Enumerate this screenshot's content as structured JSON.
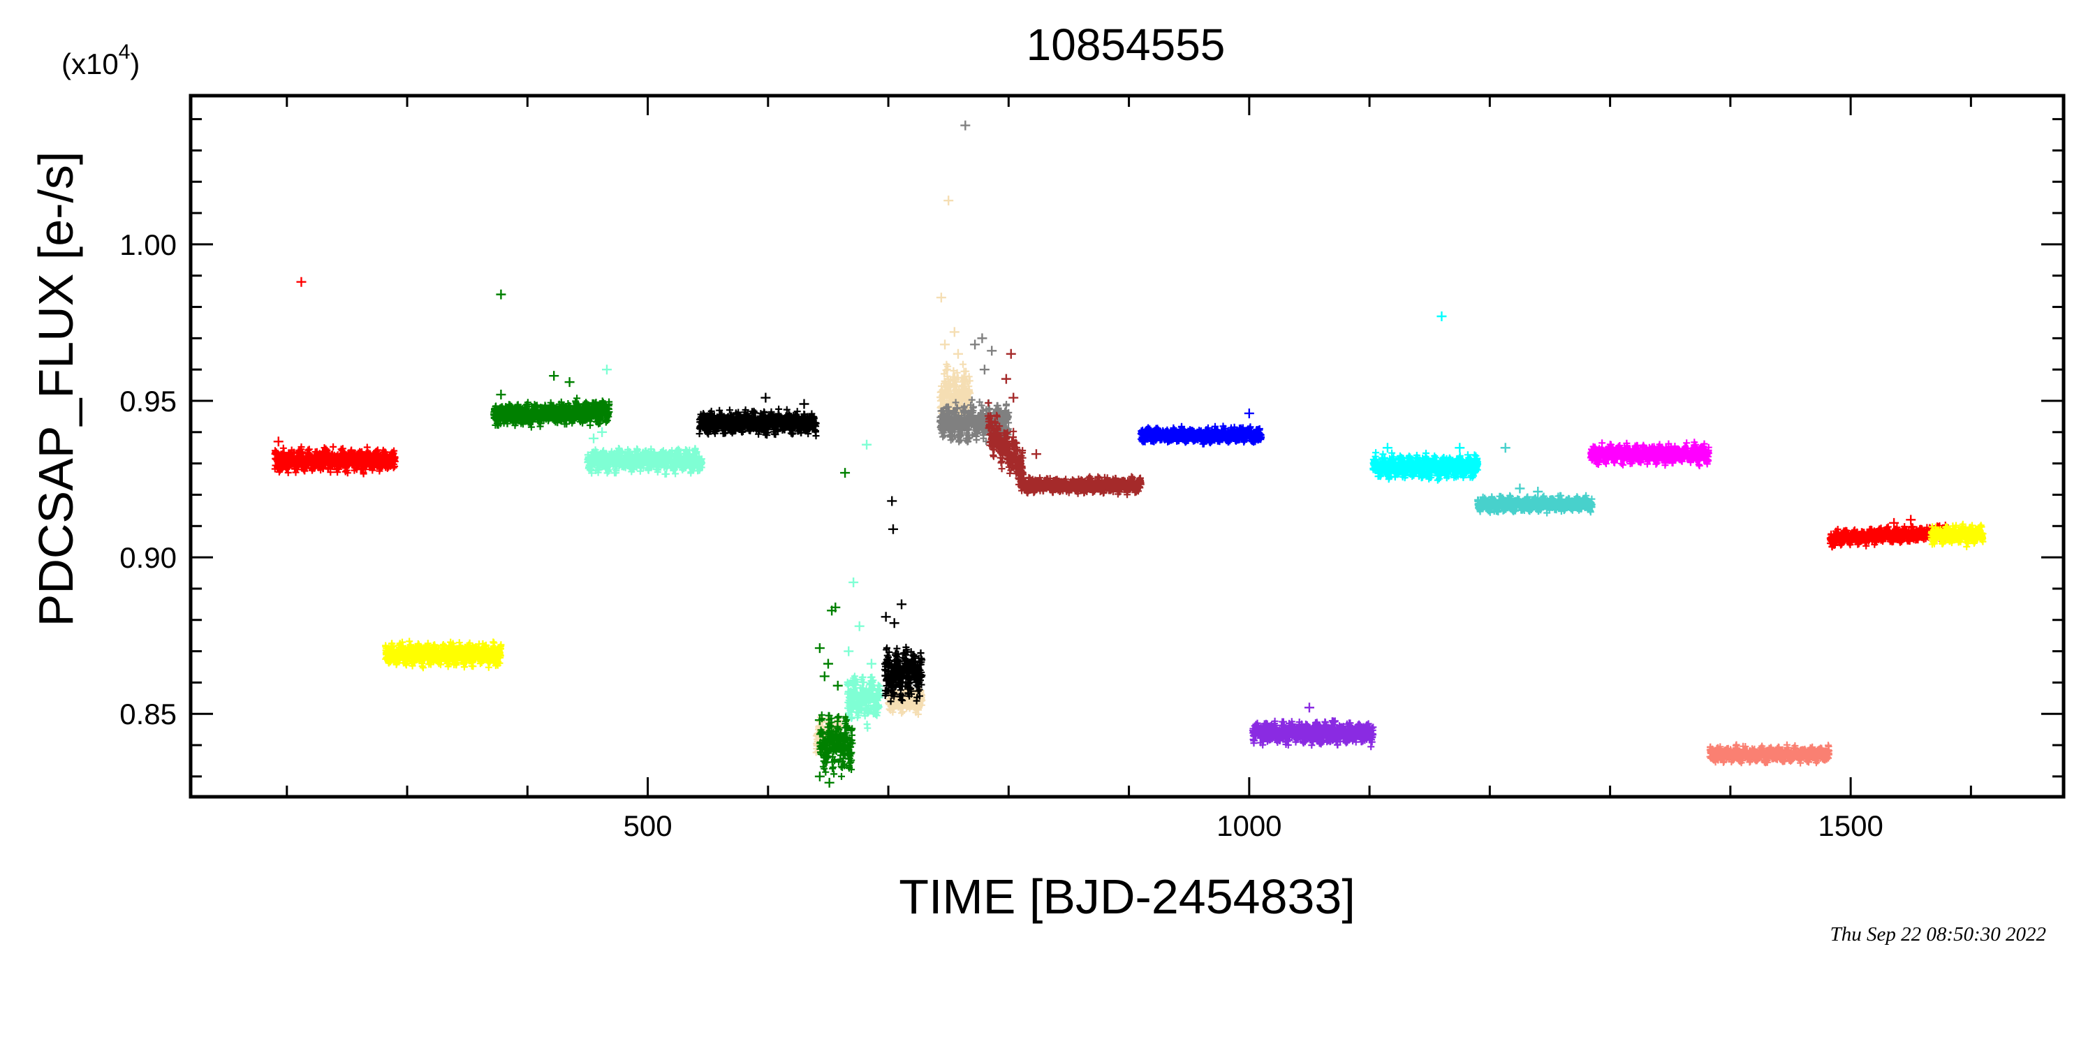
{
  "chart_data": {
    "type": "scatter",
    "title": "10854555",
    "xlabel": "TIME [BJD-2454833]",
    "ylabel": "PDCSAP_FLUX [e-/s]",
    "y_multiplier_label": "(x10",
    "y_multiplier_exp": "4",
    "y_multiplier_close": ")",
    "xlim": [
      120,
      1677
    ],
    "ylim": [
      0.8235,
      1.0475
    ],
    "x_ticks": [
      {
        "value": 500,
        "label": "500"
      },
      {
        "value": 1000,
        "label": "1000"
      },
      {
        "value": 1500,
        "label": "1500"
      }
    ],
    "y_ticks": [
      {
        "value": 0.85,
        "label": "0.85"
      },
      {
        "value": 0.9,
        "label": "0.90"
      },
      {
        "value": 0.95,
        "label": "0.95"
      },
      {
        "value": 1.0,
        "label": "1.00"
      }
    ],
    "grid": false,
    "marker": "+",
    "series": [
      {
        "color": "#ff0000",
        "x_start": 190,
        "x_end": 290,
        "level": 0.931,
        "noise": 0.003,
        "trend": 0.0,
        "outliers": [
          [
            212,
            0.988
          ],
          [
            193,
            0.937
          ]
        ]
      },
      {
        "color": "#ffff00",
        "x_start": 282,
        "x_end": 378,
        "level": 0.869,
        "noise": 0.003,
        "trend": 0.0,
        "outliers": []
      },
      {
        "color": "#008000",
        "x_start": 372,
        "x_end": 468,
        "level": 0.946,
        "noise": 0.003,
        "trend": 0.001,
        "outliers": [
          [
            378,
            0.984
          ],
          [
            422,
            0.958
          ],
          [
            435,
            0.956
          ],
          [
            378,
            0.952
          ]
        ]
      },
      {
        "color": "#7fffd4",
        "x_start": 450,
        "x_end": 545,
        "level": 0.931,
        "noise": 0.003,
        "trend": 0.0,
        "outliers": [
          [
            466,
            0.96
          ],
          [
            455,
            0.938
          ],
          [
            462,
            0.94
          ]
        ]
      },
      {
        "color": "#000000",
        "x_start": 543,
        "x_end": 640,
        "level": 0.943,
        "noise": 0.003,
        "trend": 0.0,
        "outliers": [
          [
            598,
            0.951
          ],
          [
            630,
            0.949
          ]
        ]
      },
      {
        "color": "#f5deb3",
        "x_start": 640,
        "x_end": 660,
        "level": 0.843,
        "noise": 0.005,
        "trend": 0.0,
        "outliers": []
      },
      {
        "color": "#008000",
        "x_start": 643,
        "x_end": 670,
        "level": 0.84,
        "noise": 0.007,
        "trend": 0.0,
        "outliers": [
          [
            664,
            0.927
          ],
          [
            653,
            0.883
          ],
          [
            656,
            0.884
          ],
          [
            643,
            0.871
          ],
          [
            650,
            0.866
          ],
          [
            658,
            0.859
          ],
          [
            647,
            0.862
          ],
          [
            643,
            0.848
          ],
          [
            643,
            0.83
          ],
          [
            651,
            0.828
          ]
        ]
      },
      {
        "color": "#7fffd4",
        "x_start": 666,
        "x_end": 693,
        "level": 0.855,
        "noise": 0.006,
        "trend": 0.0,
        "outliers": [
          [
            682,
            0.936
          ],
          [
            671,
            0.892
          ],
          [
            676,
            0.878
          ],
          [
            667,
            0.87
          ],
          [
            686,
            0.866
          ]
        ]
      },
      {
        "color": "#f5deb3",
        "x_start": 700,
        "x_end": 728,
        "level": 0.854,
        "noise": 0.003,
        "trend": 0.0,
        "outliers": []
      },
      {
        "color": "#000000",
        "x_start": 697,
        "x_end": 728,
        "level": 0.863,
        "noise": 0.007,
        "trend": 0.0,
        "outliers": [
          [
            703,
            0.918
          ],
          [
            704,
            0.909
          ],
          [
            711,
            0.885
          ],
          [
            698,
            0.881
          ],
          [
            705,
            0.879
          ]
        ]
      },
      {
        "color": "#f5deb3",
        "x_start": 743,
        "x_end": 768,
        "level": 0.952,
        "noise": 0.007,
        "trend": 0.0,
        "outliers": [
          [
            750,
            1.014
          ],
          [
            744,
            0.983
          ],
          [
            755,
            0.972
          ],
          [
            758,
            0.965
          ],
          [
            747,
            0.968
          ]
        ]
      },
      {
        "color": "#808080",
        "x_start": 743,
        "x_end": 800,
        "level": 0.943,
        "noise": 0.005,
        "trend": 0.0,
        "outliers": [
          [
            764,
            1.038
          ],
          [
            778,
            0.97
          ],
          [
            772,
            0.968
          ],
          [
            786,
            0.966
          ],
          [
            780,
            0.96
          ]
        ]
      },
      {
        "color": "#a52a2a",
        "x_start": 783,
        "x_end": 812,
        "level": 0.935,
        "noise": 0.006,
        "trend": -0.012,
        "outliers": [
          [
            802,
            0.965
          ],
          [
            798,
            0.957
          ],
          [
            823,
            0.933
          ],
          [
            804,
            0.951
          ]
        ]
      },
      {
        "color": "#a52a2a",
        "x_start": 810,
        "x_end": 910,
        "level": 0.923,
        "noise": 0.002,
        "trend": 0.0,
        "outliers": []
      },
      {
        "color": "#0000ff",
        "x_start": 910,
        "x_end": 1010,
        "level": 0.939,
        "noise": 0.002,
        "trend": 0.0,
        "outliers": [
          [
            1000,
            0.946
          ]
        ]
      },
      {
        "color": "#8a2be2",
        "x_start": 1003,
        "x_end": 1103,
        "level": 0.844,
        "noise": 0.003,
        "trend": 0.0,
        "outliers": [
          [
            1050,
            0.852
          ]
        ]
      },
      {
        "color": "#00ffff",
        "x_start": 1103,
        "x_end": 1190,
        "level": 0.929,
        "noise": 0.003,
        "trend": 0.0,
        "outliers": [
          [
            1160,
            0.977
          ],
          [
            1115,
            0.935
          ],
          [
            1175,
            0.935
          ]
        ]
      },
      {
        "color": "#48d1cc",
        "x_start": 1190,
        "x_end": 1285,
        "level": 0.917,
        "noise": 0.002,
        "trend": 0.0,
        "outliers": [
          [
            1213,
            0.935
          ],
          [
            1225,
            0.922
          ],
          [
            1240,
            0.921
          ]
        ]
      },
      {
        "color": "#ff00ff",
        "x_start": 1284,
        "x_end": 1382,
        "level": 0.933,
        "noise": 0.0025,
        "trend": 0.0,
        "outliers": []
      },
      {
        "color": "#fa8072",
        "x_start": 1383,
        "x_end": 1482,
        "level": 0.837,
        "noise": 0.002,
        "trend": 0.0,
        "outliers": []
      },
      {
        "color": "#ff0000",
        "x_start": 1483,
        "x_end": 1580,
        "level": 0.907,
        "noise": 0.002,
        "trend": 0.002,
        "outliers": [
          [
            1550,
            0.912
          ],
          [
            1536,
            0.911
          ]
        ]
      },
      {
        "color": "#ffff00",
        "x_start": 1567,
        "x_end": 1610,
        "level": 0.907,
        "noise": 0.0025,
        "trend": 0.0,
        "outliers": []
      }
    ]
  },
  "timestamp": "Thu Sep 22 08:50:30 2022"
}
